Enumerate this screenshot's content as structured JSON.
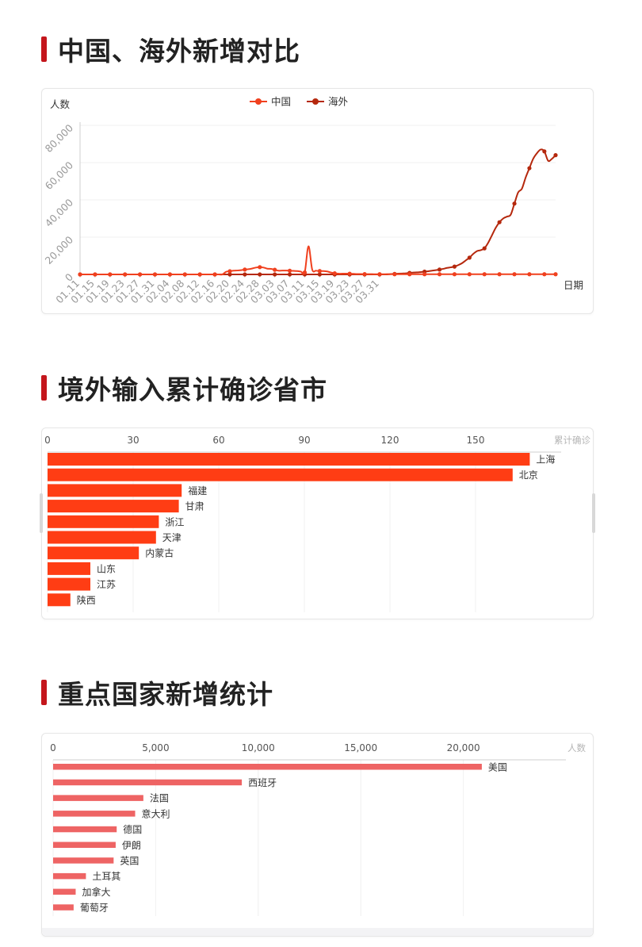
{
  "sections": [
    {
      "title": "中国、海外新增对比"
    },
    {
      "title": "境外输入累计确诊省市"
    },
    {
      "title": "重点国家新增统计"
    }
  ],
  "colors": {
    "accent": "#c4161c",
    "china": "#f0401e",
    "overseas": "#b5280d",
    "provinceBar": "#ff3d14",
    "countryBar": "#ee6464"
  },
  "chart_data": [
    {
      "type": "line",
      "ylabel": "人数",
      "xlabel": "日期",
      "ylim": [
        0,
        80000
      ],
      "yticks": [
        "0",
        "20,000",
        "40,000",
        "60,000",
        "80,000"
      ],
      "xticks": [
        "01.11",
        "01.15",
        "01.19",
        "01.23",
        "01.27",
        "01.31",
        "02.04",
        "02.08",
        "02.12",
        "02.16",
        "02.20",
        "02.24",
        "02.28",
        "03.03",
        "03.07",
        "03.11",
        "03.15",
        "03.19",
        "03.23",
        "03.27",
        "03.31"
      ],
      "legend": [
        "中国",
        "海外"
      ],
      "legend_position": "top-center",
      "series": [
        {
          "name": "中国",
          "values": [
            0,
            0,
            0,
            0,
            0,
            0,
            0,
            0,
            0,
            0,
            0,
            0,
            0,
            0,
            0,
            0,
            0,
            0,
            0,
            0,
            0,
            0,
            0,
            0,
            0,
            0,
            0,
            0,
            0,
            0,
            0,
            0,
            0,
            0,
            0,
            0,
            0,
            0,
            0,
            1400,
            1700,
            2000,
            2100,
            2300,
            2600,
            2800,
            3200,
            3700,
            3900,
            3700,
            3100,
            3000,
            2500,
            2000,
            2050,
            2050,
            2000,
            1900,
            1800,
            1500,
            1100,
            15100,
            2600,
            2000,
            1800,
            1800,
            1600,
            1000,
            600,
            400,
            400,
            400,
            400,
            300,
            200,
            200,
            150,
            150,
            150,
            100,
            100,
            100,
            150,
            100,
            100,
            100,
            100,
            100,
            100,
            100,
            100,
            100,
            100,
            100,
            100,
            100,
            100,
            100,
            100,
            100,
            100,
            100,
            100,
            100,
            100,
            100,
            100,
            100,
            100,
            100,
            100,
            100,
            100,
            100,
            100,
            100,
            100,
            100,
            100,
            100,
            100,
            100,
            100,
            100,
            100,
            100,
            100,
            100
          ]
        },
        {
          "name": "海外",
          "values": [
            0,
            0,
            0,
            0,
            0,
            0,
            0,
            0,
            0,
            0,
            0,
            0,
            0,
            0,
            0,
            0,
            0,
            0,
            0,
            0,
            0,
            0,
            0,
            0,
            0,
            0,
            0,
            0,
            0,
            0,
            0,
            0,
            0,
            0,
            0,
            0,
            0,
            0,
            0,
            0,
            0,
            0,
            0,
            0,
            0,
            0,
            0,
            0,
            0,
            0,
            0,
            0,
            0,
            0,
            0,
            0,
            0,
            0,
            0,
            0,
            0,
            0,
            0,
            0,
            0,
            0,
            0,
            0,
            0,
            0,
            0,
            0,
            0,
            0,
            0,
            0,
            0,
            0,
            0,
            0,
            0,
            0,
            0,
            200,
            300,
            400,
            500,
            600,
            800,
            1000,
            1100,
            1300,
            1500,
            1700,
            2000,
            2300,
            2600,
            3000,
            3500,
            3800,
            4200,
            5000,
            6000,
            7500,
            9000,
            11000,
            12500,
            13000,
            14000,
            17000,
            21000,
            25000,
            28000,
            30000,
            31000,
            32000,
            38000,
            44000,
            46000,
            52000,
            57000,
            62000,
            65000,
            67000,
            66000,
            61000,
            62000,
            64000
          ]
        }
      ]
    },
    {
      "type": "bar",
      "orientation": "horizontal",
      "xlabel": "累计确诊",
      "xlim": [
        0,
        180
      ],
      "xticks": [
        "0",
        "30",
        "60",
        "90",
        "120",
        "150"
      ],
      "categories": [
        "上海",
        "北京",
        "福建",
        "甘肃",
        "浙江",
        "天津",
        "内蒙古",
        "山东",
        "江苏",
        "陕西"
      ],
      "values": [
        169,
        163,
        47,
        46,
        39,
        38,
        32,
        15,
        15,
        8
      ]
    },
    {
      "type": "bar",
      "orientation": "horizontal",
      "xlabel": "人数",
      "xlim": [
        0,
        25000
      ],
      "xticks": [
        "0",
        "5,000",
        "10,000",
        "15,000",
        "20,000"
      ],
      "categories": [
        "美国",
        "西班牙",
        "法国",
        "意大利",
        "德国",
        "伊朗",
        "英国",
        "土耳其",
        "加拿大",
        "葡萄牙"
      ],
      "values": [
        20900,
        9200,
        4400,
        4000,
        3100,
        3050,
        2950,
        1600,
        1100,
        1000
      ]
    }
  ]
}
